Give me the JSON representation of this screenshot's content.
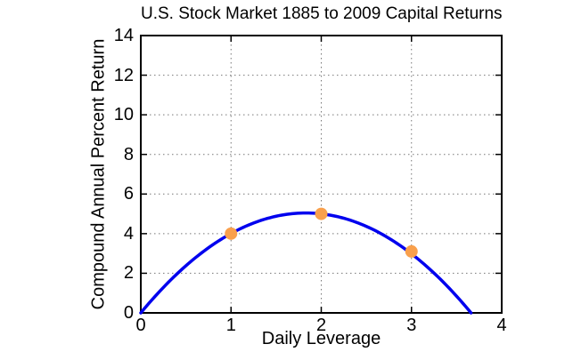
{
  "chart_data": {
    "type": "line",
    "title": "U.S. Stock Market 1885 to 2009 Capital Returns",
    "xlabel": "Daily Leverage",
    "ylabel": "Compound Annual Percent Return",
    "xlim": [
      0,
      4
    ],
    "ylim": [
      0,
      14
    ],
    "xticks": [
      0,
      1,
      2,
      3,
      4
    ],
    "yticks": [
      0,
      2,
      4,
      6,
      8,
      10,
      12,
      14
    ],
    "grid": true,
    "legend": "none",
    "curve": {
      "name": "compound-return-curve",
      "model": "y = a*x - b*x^2",
      "a": 5.512,
      "b": 1.506,
      "x_range": [
        0,
        3.66
      ],
      "peak": {
        "x": 1.83,
        "y": 5.04
      },
      "zero_crossing_x": 3.66,
      "color": "#0000ee",
      "stroke_width": 3.5
    },
    "points": {
      "name": "observed-leverage-returns",
      "color": "#f9a04c",
      "radius": 7,
      "data": [
        {
          "x": 1,
          "y": 4.0
        },
        {
          "x": 2,
          "y": 5.0
        },
        {
          "x": 3,
          "y": 3.1
        }
      ]
    },
    "colors": {
      "curve": "#0000ee",
      "markers": "#f9a04c",
      "grid": "#777777",
      "axis": "#000000",
      "background": "#ffffff",
      "text": "#000000"
    }
  }
}
